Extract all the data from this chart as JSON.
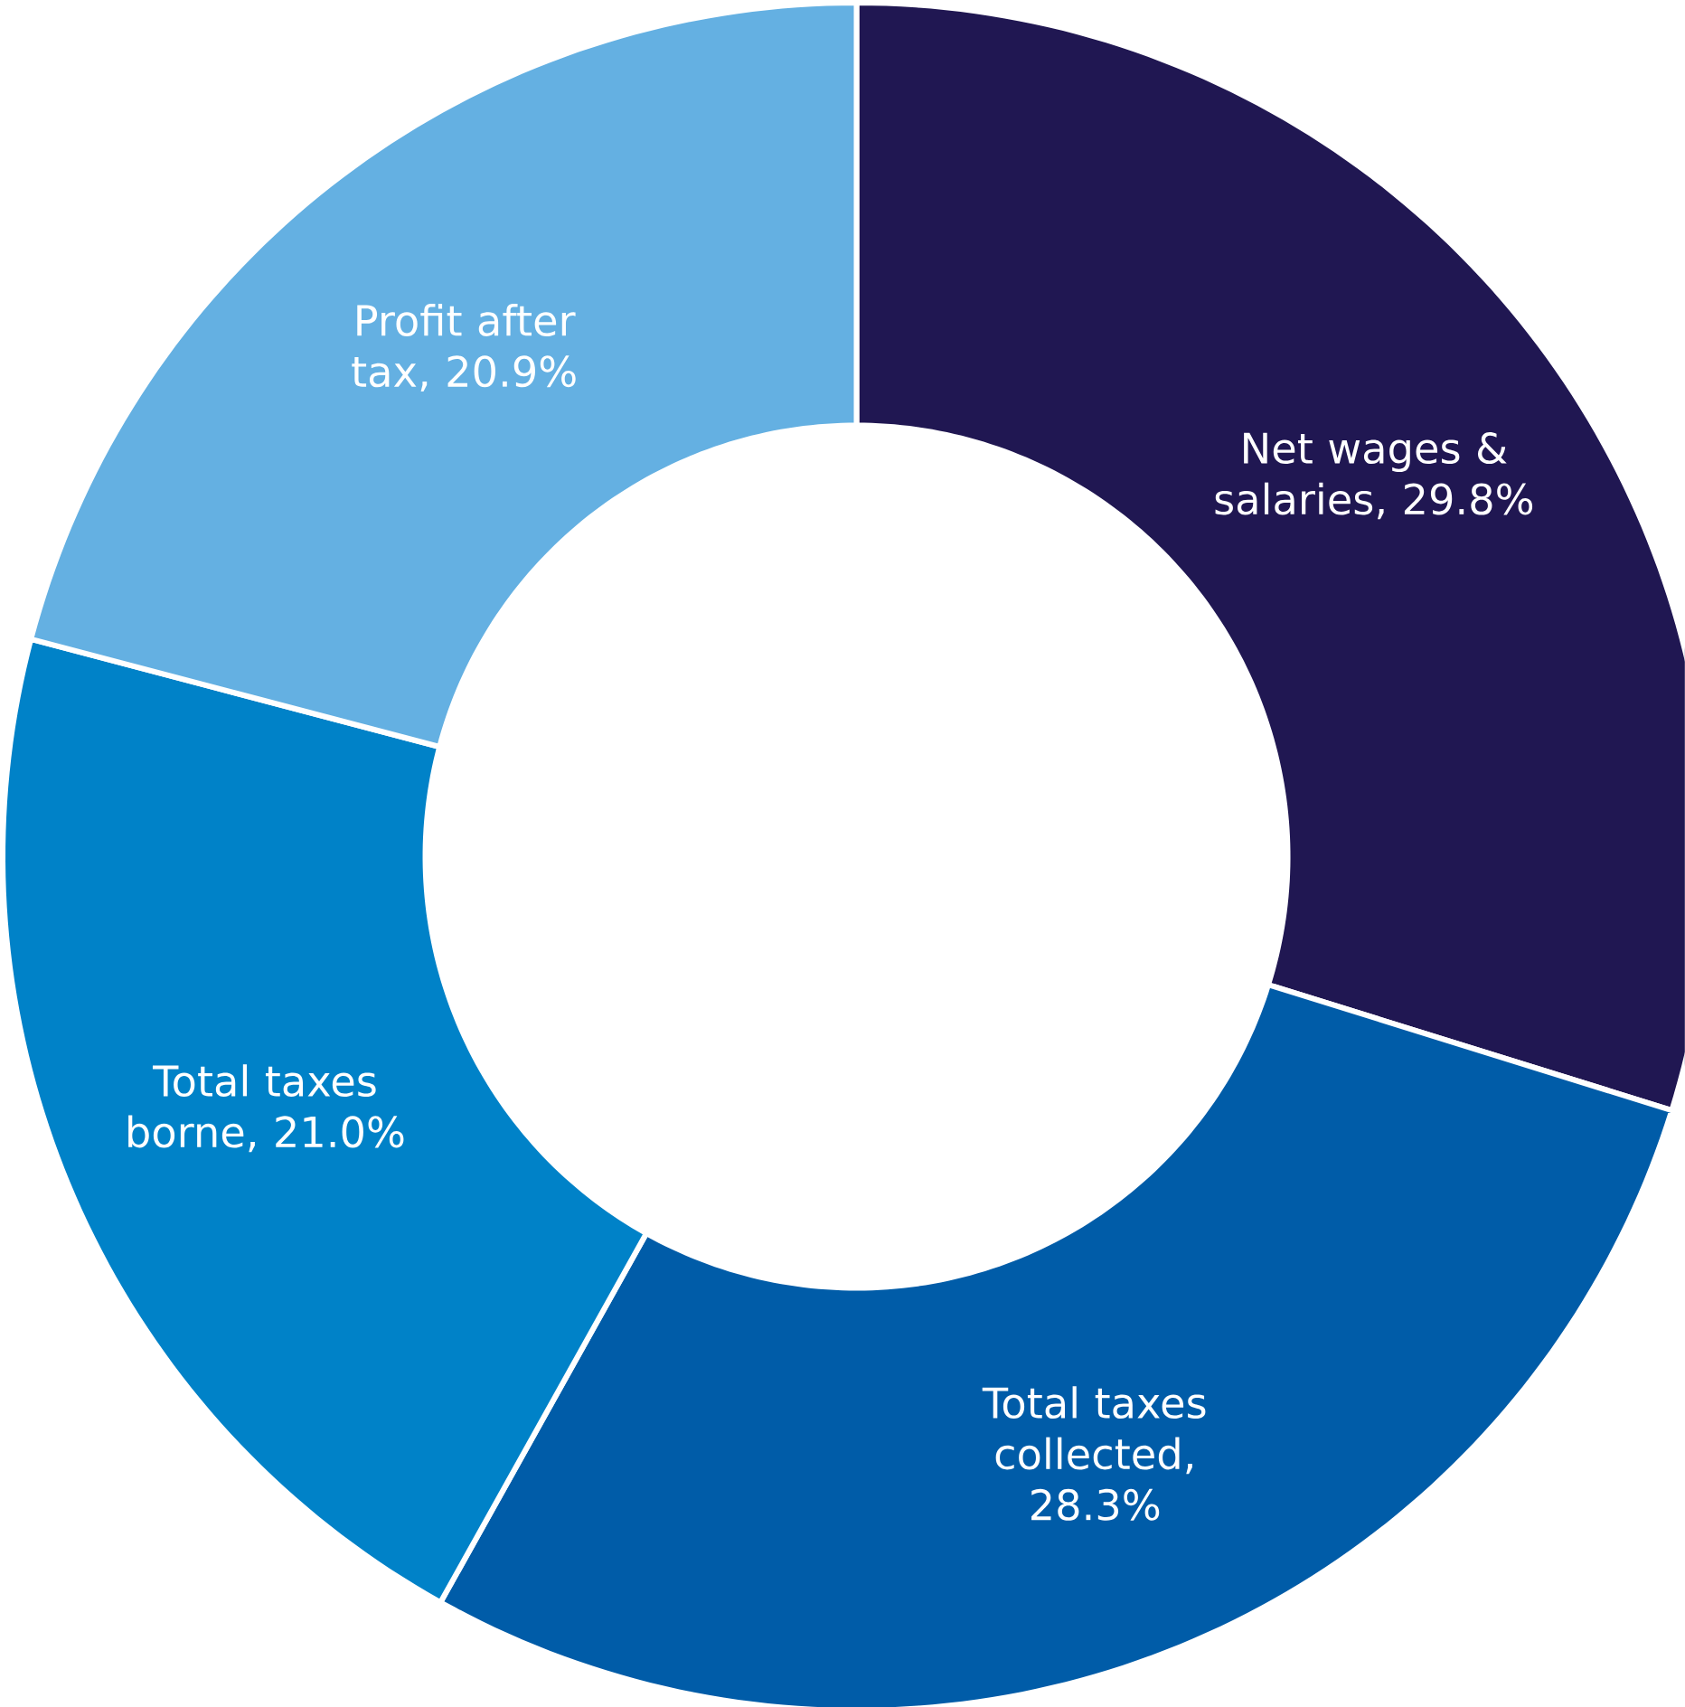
{
  "chart_data": {
    "type": "donut",
    "categories": [
      "Net wages & salaries",
      "Total taxes collected",
      "Total taxes borne",
      "Profit after tax"
    ],
    "values": [
      29.8,
      28.3,
      21.0,
      20.9
    ],
    "value_labels": [
      ", 29.8%",
      ", 28.3%",
      ", 21.0%",
      ", 20.9%"
    ],
    "colors": [
      "#201752",
      "#005ca8",
      "#0082c8",
      "#64b0e2"
    ]
  }
}
